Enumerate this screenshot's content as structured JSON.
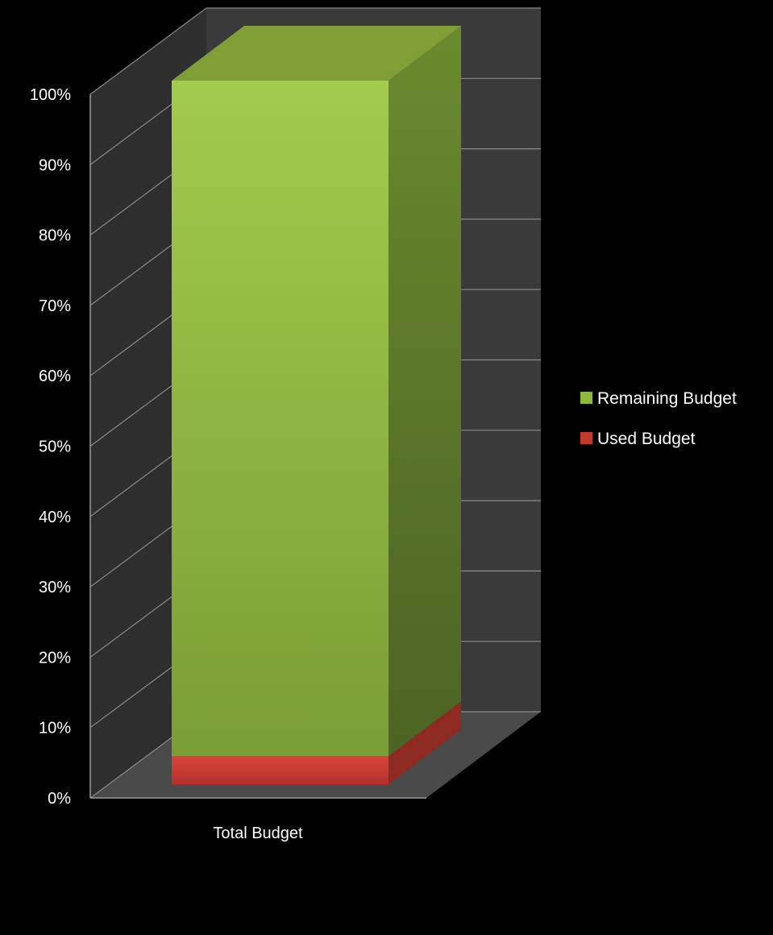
{
  "chart_data": {
    "type": "bar",
    "stacked": true,
    "percent_stacked": true,
    "three_d": true,
    "categories": [
      "Total Budget"
    ],
    "series": [
      {
        "name": "Used Budget",
        "values": [
          4
        ]
      },
      {
        "name": "Remaining Budget",
        "values": [
          96
        ]
      }
    ],
    "ylim": [
      0,
      100
    ],
    "yticks": [
      "0%",
      "10%",
      "20%",
      "30%",
      "40%",
      "50%",
      "60%",
      "70%",
      "80%",
      "90%",
      "100%"
    ],
    "grid": true,
    "legend_position": "right",
    "legend_entries": [
      "Remaining Budget",
      "Used Budget"
    ],
    "colors": {
      "background": "#000000",
      "wall": "#3a3a3a",
      "floor": "#4a4a4a",
      "remaining": "#8fb83d",
      "used": "#c0392b"
    }
  }
}
